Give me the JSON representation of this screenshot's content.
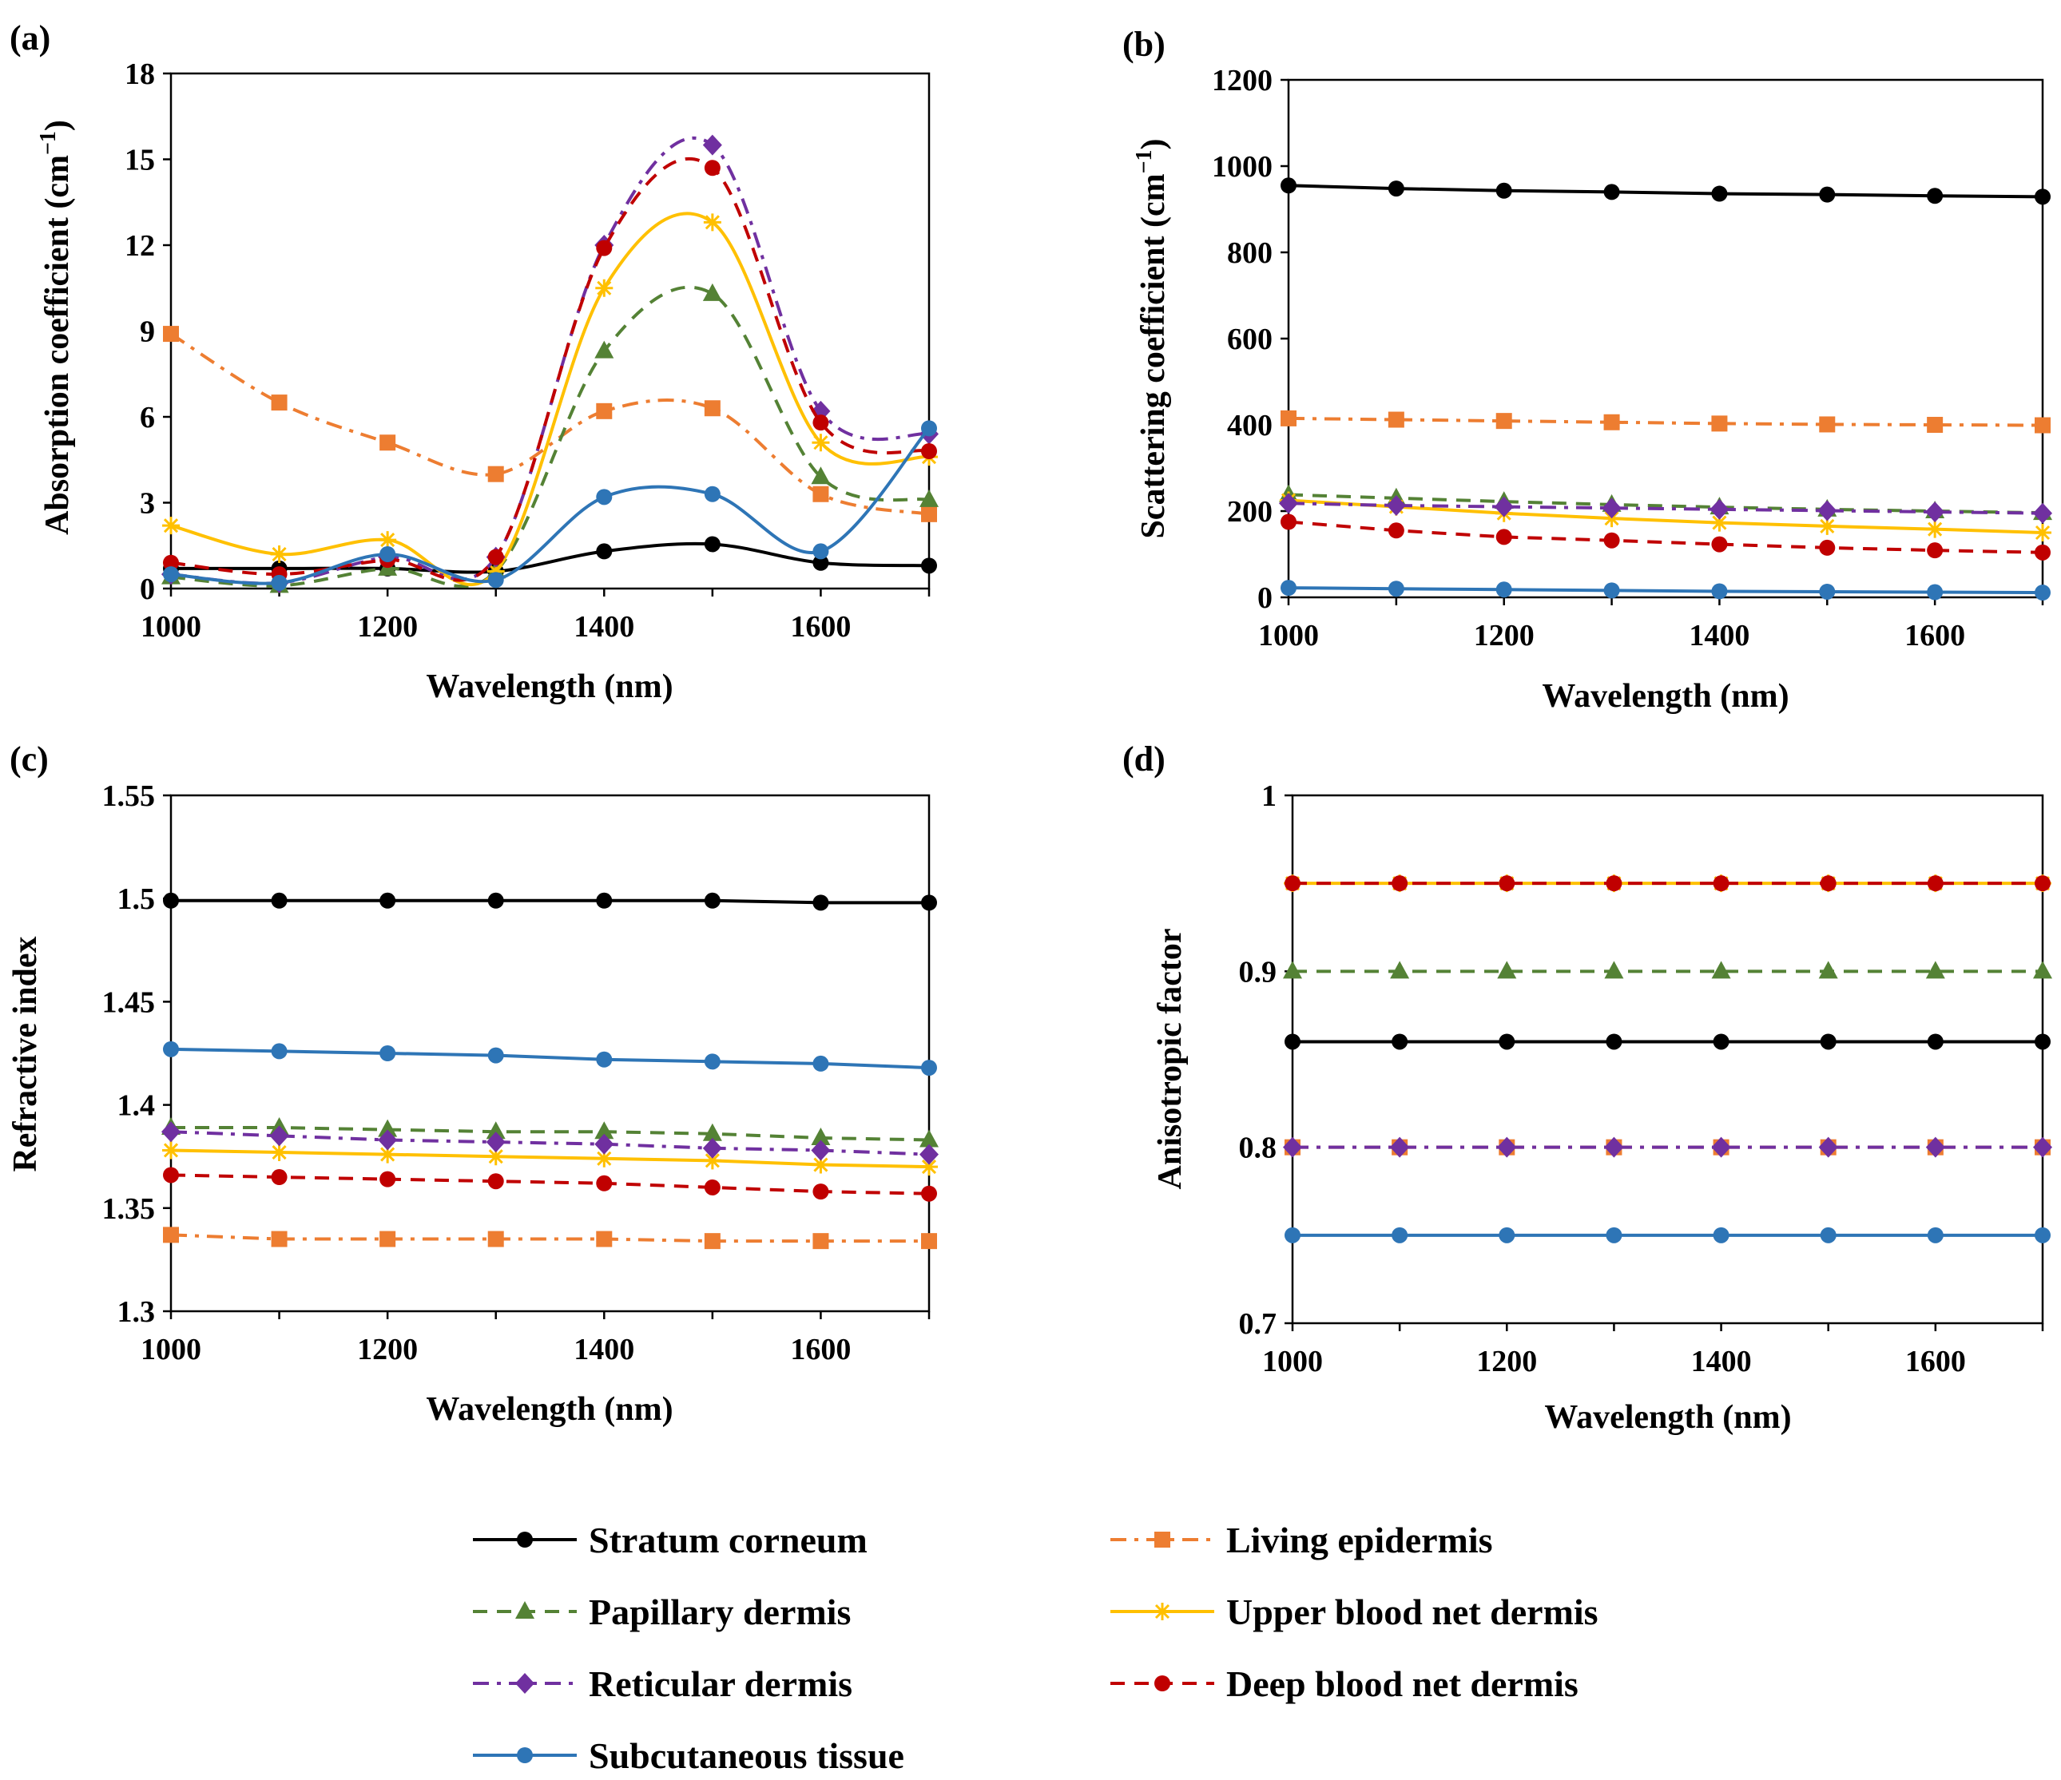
{
  "figure": {
    "x": [
      1000,
      1100,
      1200,
      1300,
      1400,
      1500,
      1600,
      1700
    ],
    "xlabel": "Wavelength (nm)",
    "x_ticks": [
      "1000",
      "1200",
      "1400",
      "1600"
    ],
    "xlim": [
      1000,
      1700
    ],
    "series_styles": [
      {
        "key": "stratum",
        "name": "Stratum corneum",
        "color": "#000000",
        "marker": "circle",
        "dash": "solid"
      },
      {
        "key": "living",
        "name": "Living epidermis",
        "color": "#ED7D31",
        "marker": "square",
        "dash": "dashdot"
      },
      {
        "key": "papillary",
        "name": "Papillary dermis",
        "color": "#548235",
        "marker": "triangle",
        "dash": "dash"
      },
      {
        "key": "upper",
        "name": "Upper blood net dermis",
        "color": "#FFC000",
        "marker": "star",
        "dash": "solid"
      },
      {
        "key": "reticular",
        "name": "Reticular dermis",
        "color": "#7030A0",
        "marker": "diamond",
        "dash": "dashdot"
      },
      {
        "key": "deep",
        "name": "Deep blood net dermis",
        "color": "#C00000",
        "marker": "circle",
        "dash": "dash"
      },
      {
        "key": "subcut",
        "name": "Subcutaneous tissue",
        "color": "#2E75B6",
        "marker": "circle",
        "dash": "solid"
      }
    ]
  },
  "chart_data": [
    {
      "panel": "(a)",
      "type": "line",
      "ylabel": "Absorption coefficient (cm",
      "ylabel_sup": "−1",
      "ylabel_end": ")",
      "ylim": [
        0,
        18
      ],
      "y_ticks": [
        "0",
        "3",
        "6",
        "9",
        "12",
        "15",
        "18"
      ],
      "smooth": true,
      "series": [
        {
          "name": "Stratum corneum",
          "values": [
            0.7,
            0.7,
            0.7,
            0.6,
            1.3,
            1.55,
            0.9,
            0.8
          ]
        },
        {
          "name": "Living epidermis",
          "values": [
            8.9,
            6.5,
            5.1,
            4.0,
            6.2,
            6.3,
            3.3,
            2.6
          ]
        },
        {
          "name": "Papillary dermis",
          "values": [
            0.4,
            0.1,
            0.7,
            0.6,
            8.3,
            10.3,
            3.9,
            3.1
          ]
        },
        {
          "name": "Upper blood net dermis",
          "values": [
            2.2,
            1.2,
            1.7,
            0.6,
            10.5,
            12.8,
            5.1,
            4.6
          ]
        },
        {
          "name": "Reticular dermis",
          "values": [
            0.5,
            0.2,
            1.1,
            1.1,
            12.0,
            15.5,
            6.2,
            5.4
          ]
        },
        {
          "name": "Deep blood net dermis",
          "values": [
            0.9,
            0.5,
            1.0,
            1.1,
            11.9,
            14.7,
            5.8,
            4.8
          ]
        },
        {
          "name": "Subcutaneous tissue",
          "values": [
            0.5,
            0.2,
            1.2,
            0.3,
            3.2,
            3.3,
            1.3,
            5.6
          ]
        }
      ]
    },
    {
      "panel": "(b)",
      "type": "line",
      "ylabel": "Scattering coefficient (cm",
      "ylabel_sup": "−1",
      "ylabel_end": ")",
      "ylim": [
        0,
        1200
      ],
      "y_ticks": [
        "0",
        "200",
        "400",
        "600",
        "800",
        "1000",
        "1200"
      ],
      "smooth": false,
      "series": [
        {
          "name": "Stratum corneum",
          "values": [
            955,
            948,
            943,
            940,
            936,
            934,
            931,
            929
          ]
        },
        {
          "name": "Living epidermis",
          "values": [
            415,
            412,
            409,
            406,
            403,
            401,
            400,
            399
          ]
        },
        {
          "name": "Papillary dermis",
          "values": [
            238,
            230,
            222,
            215,
            209,
            204,
            200,
            196
          ]
        },
        {
          "name": "Upper blood net dermis",
          "values": [
            225,
            210,
            195,
            183,
            173,
            165,
            158,
            150
          ]
        },
        {
          "name": "Reticular dermis",
          "values": [
            218,
            213,
            210,
            207,
            204,
            201,
            198,
            195
          ]
        },
        {
          "name": "Deep blood net dermis",
          "values": [
            175,
            155,
            140,
            132,
            123,
            115,
            109,
            104
          ]
        },
        {
          "name": "Subcutaneous tissue",
          "values": [
            22,
            20,
            18,
            16,
            14,
            13,
            12,
            11
          ]
        }
      ]
    },
    {
      "panel": "(c)",
      "type": "line",
      "ylabel": "Refractive index",
      "ylim": [
        1.3,
        1.55
      ],
      "y_ticks": [
        "1.3",
        "1.35",
        "1.4",
        "1.45",
        "1.5",
        "1.55"
      ],
      "smooth": false,
      "series": [
        {
          "name": "Stratum corneum",
          "values": [
            1.499,
            1.499,
            1.499,
            1.499,
            1.499,
            1.499,
            1.498,
            1.498
          ]
        },
        {
          "name": "Living epidermis",
          "values": [
            1.337,
            1.335,
            1.335,
            1.335,
            1.335,
            1.334,
            1.334,
            1.334
          ]
        },
        {
          "name": "Papillary dermis",
          "values": [
            1.389,
            1.389,
            1.388,
            1.387,
            1.387,
            1.386,
            1.384,
            1.383
          ]
        },
        {
          "name": "Upper blood net dermis",
          "values": [
            1.378,
            1.377,
            1.376,
            1.375,
            1.374,
            1.373,
            1.371,
            1.37
          ]
        },
        {
          "name": "Reticular dermis",
          "values": [
            1.387,
            1.385,
            1.383,
            1.382,
            1.381,
            1.379,
            1.378,
            1.376
          ]
        },
        {
          "name": "Deep blood net dermis",
          "values": [
            1.366,
            1.365,
            1.364,
            1.363,
            1.362,
            1.36,
            1.358,
            1.357
          ]
        },
        {
          "name": "Subcutaneous tissue",
          "values": [
            1.427,
            1.426,
            1.425,
            1.424,
            1.422,
            1.421,
            1.42,
            1.418
          ]
        }
      ]
    },
    {
      "panel": "(d)",
      "type": "line",
      "ylabel": "Anisotropic factor",
      "ylim": [
        0.7,
        1.0
      ],
      "y_ticks": [
        "0.7",
        "0.8",
        "0.9",
        "1"
      ],
      "smooth": false,
      "series": [
        {
          "name": "Stratum corneum",
          "values": [
            0.86,
            0.86,
            0.86,
            0.86,
            0.86,
            0.86,
            0.86,
            0.86
          ]
        },
        {
          "name": "Living epidermis",
          "values": [
            0.8,
            0.8,
            0.8,
            0.8,
            0.8,
            0.8,
            0.8,
            0.8
          ]
        },
        {
          "name": "Papillary dermis",
          "values": [
            0.9,
            0.9,
            0.9,
            0.9,
            0.9,
            0.9,
            0.9,
            0.9
          ]
        },
        {
          "name": "Upper blood net dermis",
          "values": [
            0.95,
            0.95,
            0.95,
            0.95,
            0.95,
            0.95,
            0.95,
            0.95
          ]
        },
        {
          "name": "Reticular dermis",
          "values": [
            0.8,
            0.8,
            0.8,
            0.8,
            0.8,
            0.8,
            0.8,
            0.8
          ]
        },
        {
          "name": "Deep blood net dermis",
          "values": [
            0.95,
            0.95,
            0.95,
            0.95,
            0.95,
            0.95,
            0.95,
            0.95
          ]
        },
        {
          "name": "Subcutaneous tissue",
          "values": [
            0.75,
            0.75,
            0.75,
            0.75,
            0.75,
            0.75,
            0.75,
            0.75
          ]
        }
      ]
    }
  ],
  "legend": [
    "Stratum corneum",
    "Living epidermis",
    "Papillary dermis",
    "Upper blood net dermis",
    "Reticular dermis",
    "Deep blood net dermis",
    "Subcutaneous tissue"
  ]
}
